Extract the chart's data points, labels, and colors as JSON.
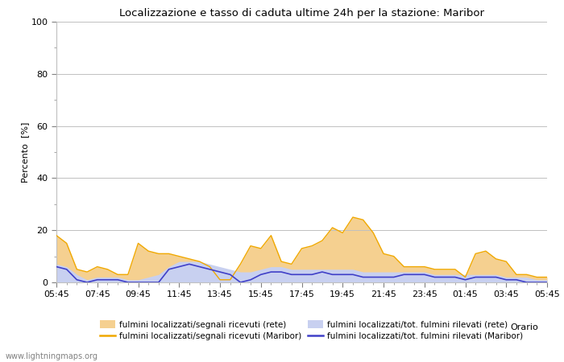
{
  "title": "Localizzazione e tasso di caduta ultime 24h per la stazione: Maribor",
  "ylabel": "Percento  [%]",
  "xlabel": "Orario",
  "ylim": [
    0,
    100
  ],
  "yticks_major": [
    0,
    20,
    40,
    60,
    80,
    100
  ],
  "yticks_minor": [
    10,
    30,
    50,
    70,
    90
  ],
  "x_labels": [
    "05:45",
    "07:45",
    "09:45",
    "11:45",
    "13:45",
    "15:45",
    "17:45",
    "19:45",
    "21:45",
    "23:45",
    "01:45",
    "03:45",
    "05:45"
  ],
  "watermark": "www.lightningmaps.org",
  "color_orange_line": "#f0a800",
  "color_orange_fill": "#f5d090",
  "color_blue_line": "#4040c8",
  "color_blue_fill": "#c8d0f0",
  "orange_line": [
    18,
    15,
    5,
    4,
    6,
    5,
    3,
    3,
    15,
    12,
    11,
    11,
    10,
    9,
    8,
    6,
    1,
    1,
    7,
    14,
    13,
    18,
    8,
    7,
    13,
    14,
    16,
    21,
    19,
    25,
    24,
    19,
    11,
    10,
    6,
    6,
    6,
    5,
    5,
    5,
    2,
    11,
    12,
    9,
    8,
    3,
    3,
    2,
    2
  ],
  "orange_fill_upper": [
    18,
    15,
    5,
    4,
    6,
    5,
    3,
    3,
    15,
    12,
    11,
    11,
    10,
    9,
    8,
    6,
    1,
    1,
    7,
    14,
    13,
    18,
    8,
    7,
    13,
    14,
    16,
    21,
    19,
    25,
    24,
    19,
    11,
    10,
    6,
    6,
    6,
    5,
    5,
    5,
    2,
    11,
    12,
    9,
    8,
    3,
    3,
    2,
    2
  ],
  "blue_line": [
    6,
    5,
    1,
    0,
    1,
    1,
    1,
    0,
    0,
    0,
    0,
    5,
    6,
    7,
    6,
    5,
    4,
    3,
    0,
    1,
    3,
    4,
    4,
    3,
    3,
    3,
    4,
    3,
    3,
    3,
    2,
    2,
    2,
    2,
    3,
    3,
    3,
    2,
    2,
    2,
    1,
    2,
    2,
    2,
    1,
    1,
    0,
    0,
    0
  ],
  "blue_fill_upper": [
    7,
    6,
    3,
    1,
    2,
    2,
    2,
    1,
    1,
    2,
    3,
    6,
    8,
    8,
    8,
    7,
    6,
    5,
    4,
    4,
    5,
    6,
    6,
    5,
    5,
    5,
    5,
    5,
    5,
    5,
    4,
    4,
    4,
    4,
    4,
    4,
    4,
    3,
    3,
    3,
    3,
    3,
    3,
    3,
    2,
    2,
    2,
    1,
    1
  ],
  "legend_entries": [
    {
      "label": "fulmini localizzati/segnali ricevuti (rete)",
      "type": "fill",
      "color": "#f5d090"
    },
    {
      "label": "fulmini localizzati/segnali ricevuti (Maribor)",
      "type": "line",
      "color": "#f0a800"
    },
    {
      "label": "fulmini localizzati/tot. fulmini rilevati (rete)",
      "type": "fill",
      "color": "#c8d0f0"
    },
    {
      "label": "fulmini localizzati/tot. fulmini rilevati (Maribor)",
      "type": "line",
      "color": "#4040c8"
    }
  ],
  "bg_color": "#ffffff",
  "grid_color": "#c0c0c0",
  "tick_color": "#808080",
  "spine_color": "#c0c0c0"
}
